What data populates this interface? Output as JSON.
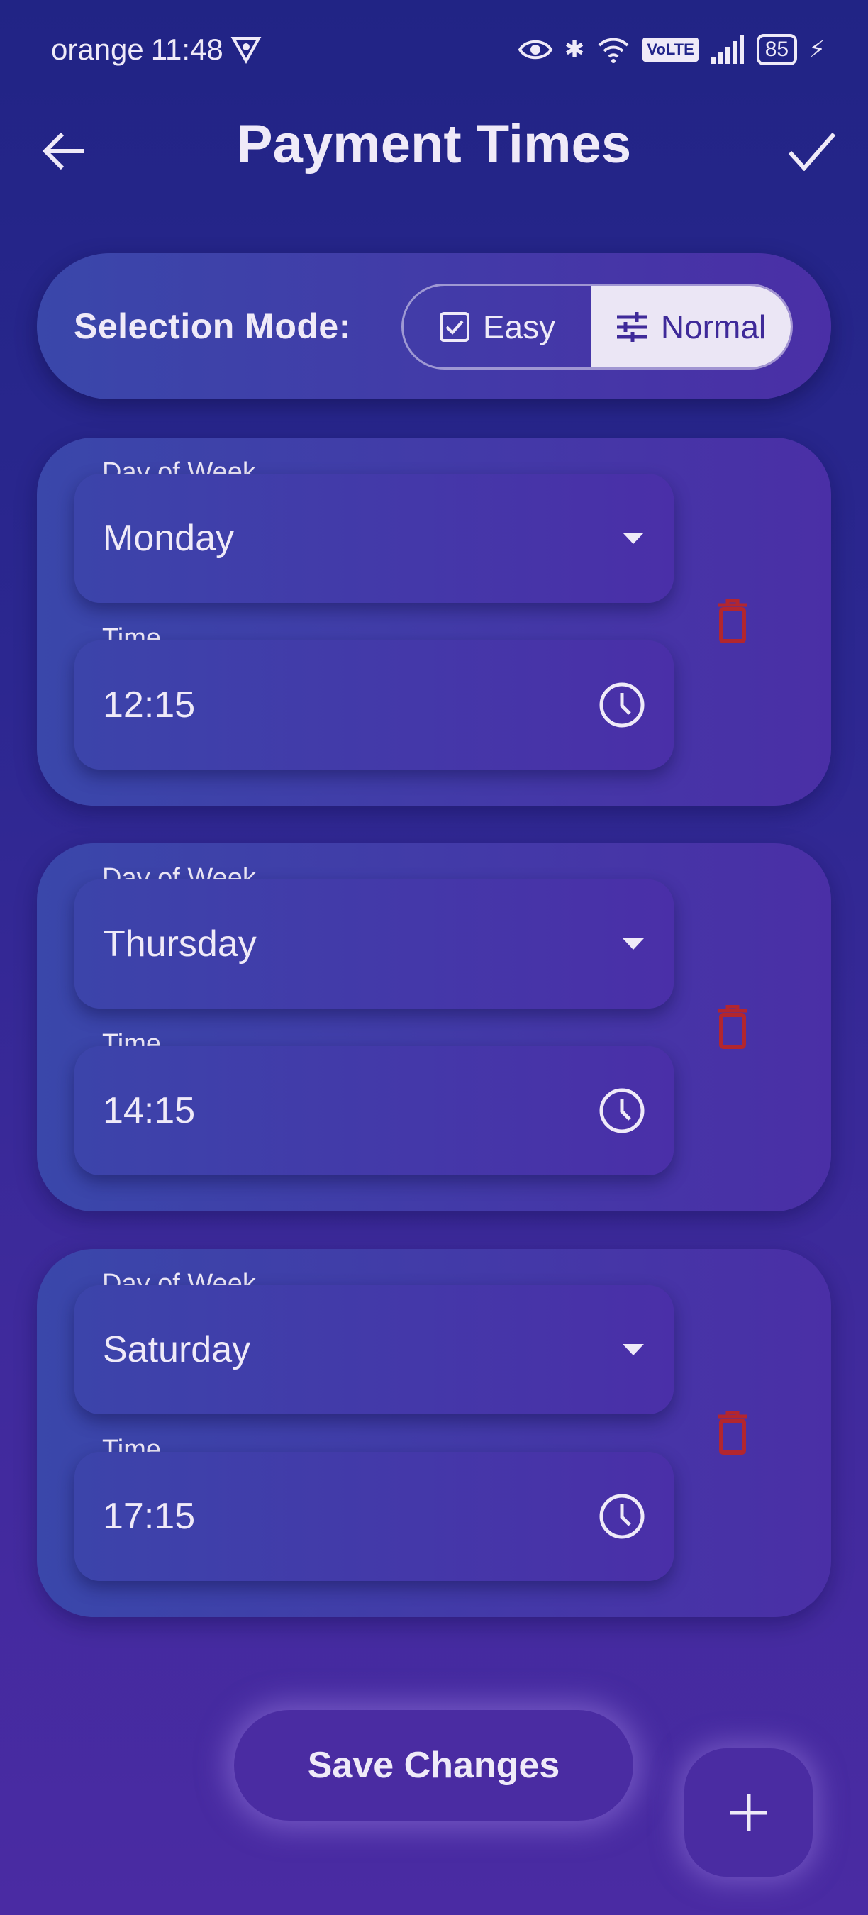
{
  "status_bar": {
    "carrier": "orange",
    "time": "11:48",
    "network_badge": "VoLTE",
    "battery": "85",
    "icons": [
      "vpn-icon",
      "eye-icon",
      "bluetooth-icon",
      "wifi-icon",
      "signal-icon",
      "battery-icon",
      "charging-icon"
    ]
  },
  "header": {
    "title": "Payment Times",
    "back_icon": "arrow-left-icon",
    "confirm_icon": "check-icon"
  },
  "selection_mode": {
    "label": "Selection Mode:",
    "options": [
      {
        "label": "Easy",
        "icon": "checkbox-icon",
        "selected": false
      },
      {
        "label": "Normal",
        "icon": "sliders-icon",
        "selected": true
      }
    ]
  },
  "schedules": [
    {
      "day_label": "Day of Week",
      "day": "Monday",
      "time_label": "Time",
      "time": "12:15"
    },
    {
      "day_label": "Day of Week",
      "day": "Thursday",
      "time_label": "Time",
      "time": "14:15"
    },
    {
      "day_label": "Day of Week",
      "day": "Saturday",
      "time_label": "Time",
      "time": "17:15"
    }
  ],
  "actions": {
    "save_label": "Save Changes",
    "add_icon": "plus-icon"
  },
  "colors": {
    "background_top": "#212485",
    "background_bottom": "#4a2ba3",
    "delete": "#b3262e",
    "selected_segment": "#ebe6f5"
  }
}
